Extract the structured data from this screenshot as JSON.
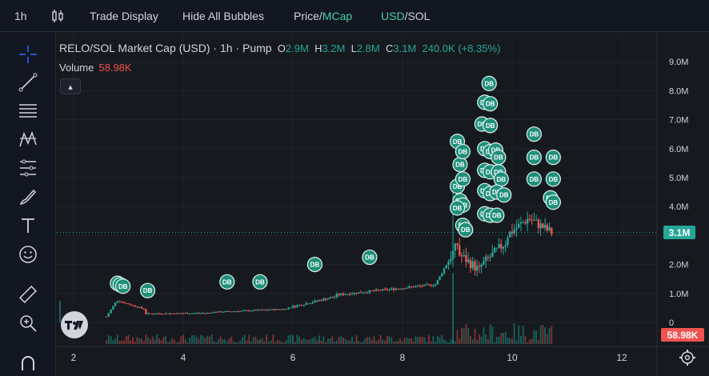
{
  "toolbar": {
    "interval": "1h",
    "trade_display": "Trade Display",
    "hide_bubbles": "Hide All Bubbles",
    "price_label": "Price",
    "mcap_label": "MCap",
    "usd_label": "USD",
    "sol_label": "SOL"
  },
  "legend": {
    "title": "RELO/SOL Market Cap (USD) · 1h · Pump",
    "o_key": "O",
    "o_val": "2.9M",
    "h_key": "H",
    "h_val": "3.2M",
    "l_key": "L",
    "l_val": "2.8M",
    "c_key": "C",
    "c_val": "3.1M",
    "change": "240.0K (+8.35%)",
    "volume_label": "Volume",
    "volume_val": "58.98K"
  },
  "colors": {
    "up": "#26a69a",
    "down": "#ef5350",
    "bubble": "#1f8f7a",
    "bg": "#161a1e"
  },
  "tools": [
    "crosshair-icon",
    "trendline-icon",
    "fib-icon",
    "pattern-icon",
    "forecast-icon",
    "brush-icon",
    "text-icon",
    "emoji-icon",
    "ruler-icon",
    "zoom-icon",
    "magnet-icon"
  ],
  "chart_data": {
    "type": "candlestick",
    "title": "RELO/SOL Market Cap (USD) · 1h · Pump",
    "y_ticks": [
      "0",
      "1.0M",
      "2.0M",
      "3.0M",
      "4.0M",
      "5.0M",
      "6.0M",
      "7.0M",
      "8.0M",
      "9.0M"
    ],
    "y_tick_values": [
      0,
      1,
      2,
      3,
      4,
      5,
      6,
      7,
      8,
      9
    ],
    "x_ticks": [
      "2",
      "4",
      "6",
      "8",
      "10",
      "12"
    ],
    "x_tick_values": [
      2,
      4,
      6,
      8,
      10,
      12
    ],
    "ylim": [
      0,
      9.2
    ],
    "xlim": [
      1.8,
      13.2
    ],
    "last_price": "3.1M",
    "last_price_value": 3.1,
    "last_volume": "58.98K",
    "bubble_label": "DB",
    "bubbles": [
      [
        2.8,
        1.35
      ],
      [
        2.85,
        1.3
      ],
      [
        2.9,
        1.25
      ],
      [
        3.35,
        1.1
      ],
      [
        4.8,
        1.4
      ],
      [
        5.4,
        1.4
      ],
      [
        6.4,
        2.0
      ],
      [
        7.4,
        2.25
      ],
      [
        9.0,
        6.25
      ],
      [
        9.05,
        5.45
      ],
      [
        9.1,
        5.9
      ],
      [
        9.0,
        4.7
      ],
      [
        9.1,
        4.95
      ],
      [
        9.05,
        4.2
      ],
      [
        9.1,
        4.05
      ],
      [
        9.0,
        3.95
      ],
      [
        9.1,
        3.35
      ],
      [
        9.15,
        3.2
      ],
      [
        9.5,
        7.6
      ],
      [
        9.6,
        7.55
      ],
      [
        9.45,
        6.85
      ],
      [
        9.6,
        6.8
      ],
      [
        9.5,
        6.0
      ],
      [
        9.6,
        5.9
      ],
      [
        9.7,
        5.95
      ],
      [
        9.75,
        5.7
      ],
      [
        9.5,
        5.25
      ],
      [
        9.6,
        5.2
      ],
      [
        9.75,
        5.2
      ],
      [
        9.8,
        4.95
      ],
      [
        9.5,
        4.55
      ],
      [
        9.6,
        4.45
      ],
      [
        9.72,
        4.5
      ],
      [
        9.85,
        4.4
      ],
      [
        9.5,
        3.75
      ],
      [
        9.6,
        3.7
      ],
      [
        9.72,
        3.7
      ],
      [
        9.58,
        8.25
      ],
      [
        10.4,
        6.5
      ],
      [
        10.4,
        5.7
      ],
      [
        10.75,
        5.7
      ],
      [
        10.4,
        4.95
      ],
      [
        10.75,
        4.95
      ],
      [
        10.7,
        4.3
      ],
      [
        10.75,
        4.15
      ]
    ]
  }
}
